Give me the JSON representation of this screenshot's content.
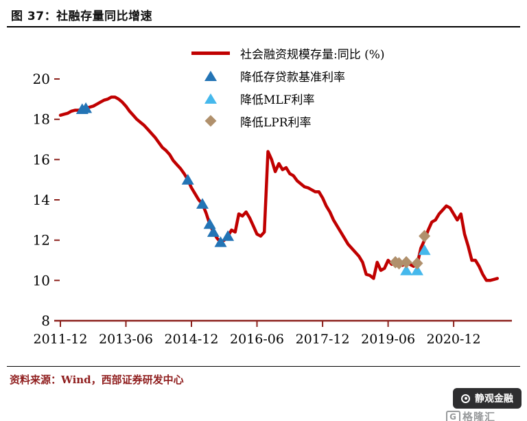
{
  "header": {
    "title": "图 37：社融存量同比增速"
  },
  "footer": {
    "source": "资料来源：Wind，西部证券研发中心"
  },
  "watermark": {
    "pill_text": "静观金融",
    "logo_prefix": "G",
    "logo_text": "格隆汇"
  },
  "chart_data": {
    "type": "line",
    "title": "社融存量同比增速",
    "grid": false,
    "legend_position": "top-center",
    "x_unit": "month index from 2011-12, monthly frequency",
    "x_range": [
      0,
      124
    ],
    "y_range": [
      8,
      20
    ],
    "y_ticks": [
      8,
      10,
      12,
      14,
      16,
      18,
      20
    ],
    "x_ticks": [
      {
        "m": 0,
        "label": "2011-12"
      },
      {
        "m": 18,
        "label": "2013-06"
      },
      {
        "m": 36,
        "label": "2014-12"
      },
      {
        "m": 54,
        "label": "2016-06"
      },
      {
        "m": 72,
        "label": "2017-12"
      },
      {
        "m": 90,
        "label": "2019-06"
      },
      {
        "m": 108,
        "label": "2020-12"
      }
    ],
    "axis_color": "#8B1F1A",
    "series": {
      "name": "社会融资规模存量:同比 (%)",
      "color": "#C00000",
      "start": "2011-12",
      "values": [
        18.2,
        18.25,
        18.3,
        18.4,
        18.45,
        18.45,
        18.5,
        18.55,
        18.6,
        18.65,
        18.75,
        18.85,
        18.95,
        19.0,
        19.1,
        19.1,
        19.0,
        18.85,
        18.65,
        18.4,
        18.2,
        18.0,
        17.85,
        17.7,
        17.5,
        17.3,
        17.1,
        16.85,
        16.6,
        16.45,
        16.25,
        15.95,
        15.75,
        15.55,
        15.3,
        15.0,
        14.6,
        14.3,
        14.0,
        13.8,
        13.35,
        12.8,
        12.4,
        12.1,
        11.9,
        12.0,
        12.2,
        12.5,
        12.4,
        13.3,
        13.2,
        13.4,
        13.1,
        12.7,
        12.3,
        12.2,
        12.4,
        16.4,
        16.0,
        15.4,
        15.8,
        15.5,
        15.6,
        15.3,
        15.2,
        14.95,
        14.8,
        14.65,
        14.6,
        14.5,
        14.4,
        14.4,
        14.1,
        13.7,
        13.4,
        13.0,
        12.7,
        12.4,
        12.1,
        11.8,
        11.6,
        11.4,
        11.2,
        10.9,
        10.3,
        10.25,
        10.1,
        10.9,
        10.5,
        10.6,
        11.0,
        10.8,
        10.9,
        10.9,
        10.75,
        10.9,
        10.8,
        10.7,
        10.8,
        11.6,
        12.0,
        12.5,
        12.9,
        13.0,
        13.3,
        13.5,
        13.7,
        13.6,
        13.3,
        13.0,
        13.3,
        12.3,
        11.7,
        11.0,
        11.0,
        10.7,
        10.3,
        10.0,
        10.0,
        10.05,
        10.1
      ]
    },
    "markers": [
      {
        "id": "benchmark-rate-cut",
        "label": "降低存贷款基准利率",
        "shape": "triangle",
        "color": "#2374B5",
        "points": [
          {
            "m": 6,
            "v": 18.5
          },
          {
            "m": 7,
            "v": 18.55
          },
          {
            "m": 35,
            "v": 15.0
          },
          {
            "m": 39,
            "v": 13.8
          },
          {
            "m": 41,
            "v": 12.8
          },
          {
            "m": 42,
            "v": 12.4
          },
          {
            "m": 44,
            "v": 11.9
          },
          {
            "m": 46,
            "v": 12.2
          }
        ]
      },
      {
        "id": "mlf-rate-cut",
        "label": "降低MLF利率",
        "shape": "triangle",
        "color": "#45B8EC",
        "points": [
          {
            "m": 95,
            "v": 10.5
          },
          {
            "m": 98,
            "v": 10.5
          },
          {
            "m": 100,
            "v": 11.5
          }
        ]
      },
      {
        "id": "lpr-rate-cut",
        "label": "降低LPR利率",
        "shape": "diamond",
        "color": "#B0906C",
        "points": [
          {
            "m": 92,
            "v": 10.9
          },
          {
            "m": 93,
            "v": 10.85
          },
          {
            "m": 95,
            "v": 10.9
          },
          {
            "m": 98,
            "v": 10.85
          },
          {
            "m": 100,
            "v": 12.2
          }
        ]
      }
    ]
  }
}
